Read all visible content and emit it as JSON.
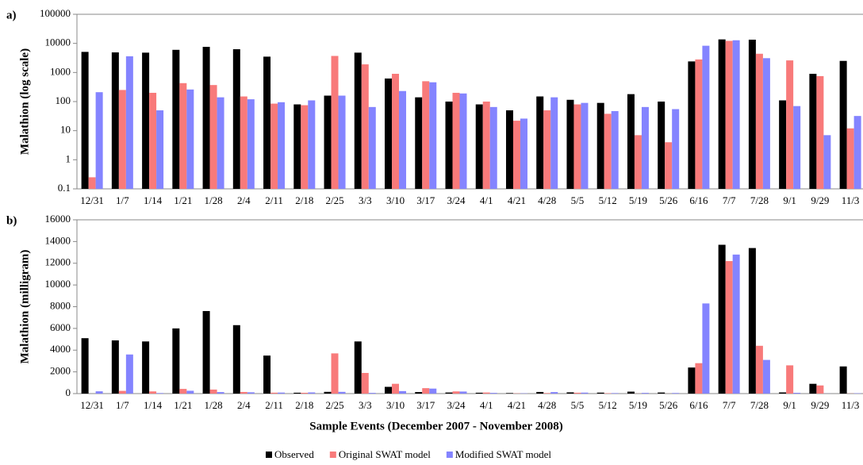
{
  "chart_data": {
    "type": "bar",
    "categories": [
      "12/31",
      "1/7",
      "1/14",
      "1/21",
      "1/28",
      "2/4",
      "2/11",
      "2/18",
      "2/25",
      "3/3",
      "3/10",
      "3/17",
      "3/24",
      "4/1",
      "4/21",
      "4/28",
      "5/5",
      "5/12",
      "5/19",
      "5/26",
      "6/16",
      "7/7",
      "7/28",
      "9/1",
      "9/29",
      "11/3"
    ],
    "series": [
      {
        "name": "Observed",
        "color": "#000000",
        "values": [
          5100,
          4900,
          4800,
          6000,
          7600,
          6300,
          3500,
          80,
          160,
          4800,
          620,
          140,
          100,
          80,
          50,
          150,
          115,
          90,
          180,
          100,
          2400,
          13700,
          13400,
          110,
          900,
          2500
        ]
      },
      {
        "name": "Original SWAT model",
        "color": "#f87a7a",
        "values": [
          0.25,
          250,
          200,
          430,
          370,
          150,
          85,
          75,
          3700,
          1900,
          900,
          500,
          200,
          100,
          22,
          50,
          80,
          38,
          7,
          4,
          2800,
          12200,
          4400,
          2600,
          750,
          12
        ]
      },
      {
        "name": "Modified SWAT model",
        "color": "#8484ff",
        "values": [
          210,
          3600,
          50,
          260,
          140,
          120,
          95,
          110,
          160,
          65,
          230,
          460,
          190,
          65,
          26,
          140,
          90,
          47,
          65,
          55,
          8300,
          12800,
          3100,
          70,
          7,
          32
        ]
      }
    ],
    "xlabel": "Sample Events (December 2007 - November 2008)",
    "panels": [
      {
        "label": "a)",
        "ylabel": "Malathion (log scale)",
        "log_scale": true,
        "ylim": [
          0.1,
          100000
        ],
        "yticks": [
          0.1,
          1,
          10,
          100,
          1000,
          10000,
          100000
        ]
      },
      {
        "label": "b)",
        "ylabel": "Malathion (milligram)",
        "log_scale": false,
        "ylim": [
          0,
          16000
        ],
        "yticks": [
          0,
          2000,
          4000,
          6000,
          8000,
          10000,
          12000,
          14000,
          16000
        ]
      }
    ]
  }
}
